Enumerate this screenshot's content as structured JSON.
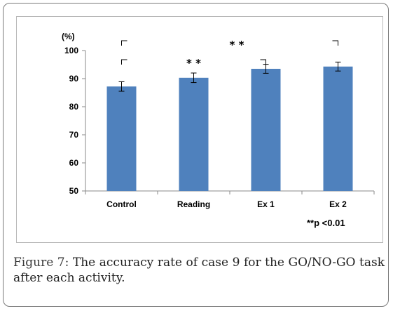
{
  "chart_data": {
    "type": "bar",
    "categories": [
      "Control",
      "Reading",
      "Ex 1",
      "Ex 2"
    ],
    "values": [
      87.2,
      90.3,
      93.5,
      94.3
    ],
    "errors": [
      1.7,
      1.7,
      1.6,
      1.6
    ],
    "ylim": [
      50,
      100
    ],
    "yticks": [
      50,
      60,
      70,
      80,
      90,
      100
    ],
    "yunit": "(%)",
    "bar_color": "#4f81bd",
    "significance": [
      {
        "label": "* *",
        "from": "Control",
        "to": "Reading"
      },
      {
        "label": "* *",
        "from": "Control",
        "to": "Ex 2"
      }
    ],
    "note": "**p <0.01",
    "grid": false
  },
  "caption": {
    "label": "Figure 7:",
    "text": " The accuracy rate of case 9 for the GO/NO-GO task after each activity."
  }
}
